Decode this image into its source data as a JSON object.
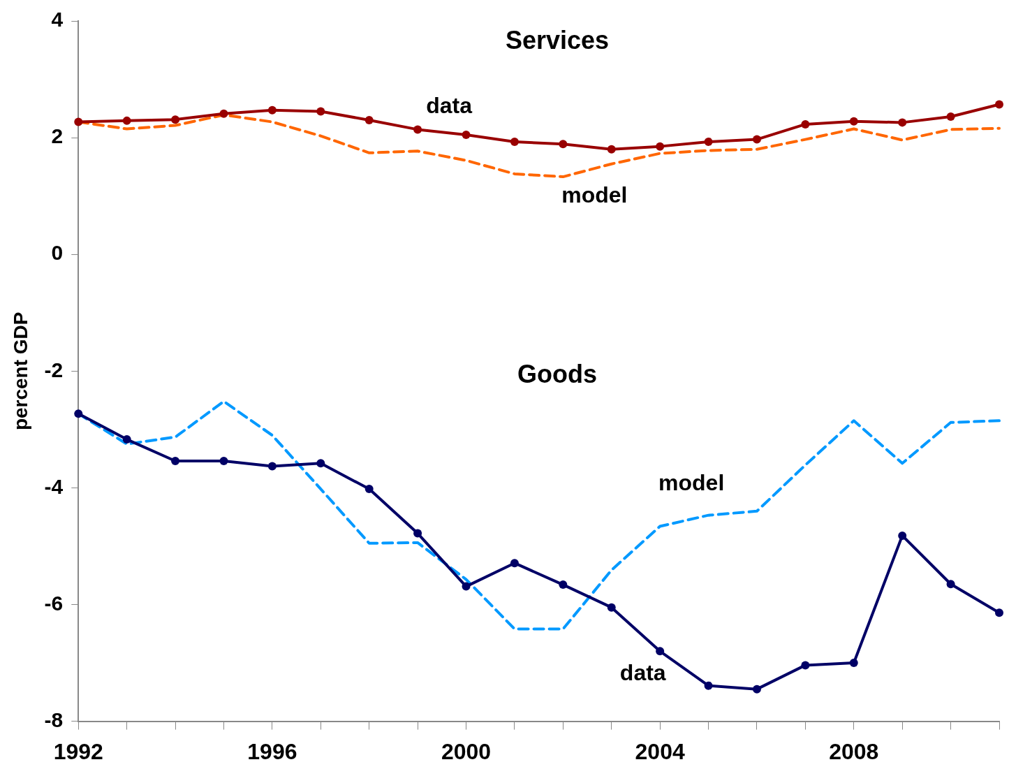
{
  "chart_data": {
    "type": "line",
    "ylabel": "percent GDP",
    "annotations": [
      "Services",
      "Goods"
    ],
    "x": [
      1992,
      1993,
      1994,
      1995,
      1996,
      1997,
      1998,
      1999,
      2000,
      2001,
      2002,
      2003,
      2004,
      2005,
      2006,
      2007,
      2008,
      2009,
      2010,
      2011
    ],
    "xlim": [
      1992,
      2011
    ],
    "xticks": [
      1992,
      {
        "value": 1993,
        "label": null
      },
      {
        "value": 1994,
        "label": null
      },
      {
        "value": 1995,
        "label": null
      },
      1996,
      {
        "value": 1997,
        "label": null
      },
      {
        "value": 1998,
        "label": null
      },
      {
        "value": 1999,
        "label": null
      },
      2000,
      {
        "value": 2001,
        "label": null
      },
      {
        "value": 2002,
        "label": null
      },
      {
        "value": 2003,
        "label": null
      },
      2004,
      {
        "value": 2005,
        "label": null
      },
      {
        "value": 2006,
        "label": null
      },
      {
        "value": 2007,
        "label": null
      },
      2008,
      {
        "value": 2009,
        "label": null
      },
      {
        "value": 2010,
        "label": null
      },
      {
        "value": 2011,
        "label": null
      }
    ],
    "ylim": [
      -8,
      4
    ],
    "yticks": [
      -8,
      -6,
      -4,
      -2,
      0,
      2,
      4
    ],
    "grid": false,
    "legend": false,
    "series": [
      {
        "name": "data",
        "color": "#990000",
        "marker": "circle",
        "line_style": "solid",
        "values": [
          2.27,
          2.29,
          2.31,
          2.41,
          2.47,
          2.45,
          2.3,
          2.14,
          2.05,
          1.93,
          1.89,
          1.8,
          1.85,
          1.93,
          1.97,
          2.23,
          2.28,
          2.26,
          2.36,
          2.57
        ]
      },
      {
        "name": "model",
        "color": "#ff6600",
        "marker": "none",
        "line_style": "dashed",
        "values": [
          2.27,
          2.15,
          2.21,
          2.39,
          2.27,
          2.03,
          1.74,
          1.77,
          1.61,
          1.38,
          1.33,
          1.55,
          1.73,
          1.78,
          1.8,
          1.97,
          2.15,
          1.96,
          2.14,
          2.16
        ]
      },
      {
        "name": "data",
        "color": "#000066",
        "marker": "circle",
        "line_style": "solid",
        "values": [
          -2.73,
          -3.17,
          -3.54,
          -3.54,
          -3.63,
          -3.58,
          -4.02,
          -4.78,
          -5.69,
          -5.29,
          -5.66,
          -6.05,
          -6.8,
          -7.39,
          -7.45,
          -7.04,
          -7.0,
          -4.82,
          -5.65,
          -6.14
        ]
      },
      {
        "name": "model",
        "color": "#0099ff",
        "marker": "none",
        "line_style": "dashed",
        "values": [
          -2.73,
          -3.25,
          -3.13,
          -2.52,
          -3.1,
          -4.02,
          -4.95,
          -4.94,
          -5.57,
          -6.42,
          -6.42,
          -5.41,
          -4.66,
          -4.47,
          -4.4,
          -3.61,
          -2.85,
          -3.58,
          -2.88,
          -2.85
        ]
      }
    ]
  }
}
